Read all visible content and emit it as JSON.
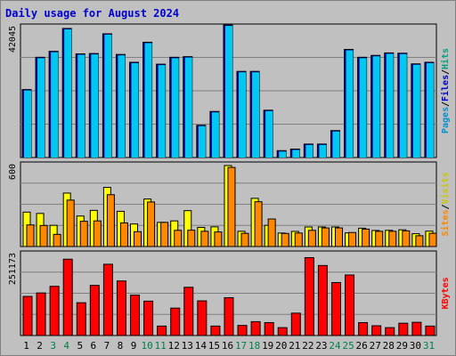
{
  "title": "Daily usage for August 2024",
  "colors": {
    "pages": "#0090d0",
    "hits": "#00c8f0",
    "visits": "#ffff00",
    "sites": "#ff8800",
    "kbytes": "#ff0000",
    "weekend_label": "#00804a",
    "weekday_label": "#000000",
    "frame": "#c0c0c0",
    "grid": "#808080"
  },
  "chart_data": [
    {
      "type": "bar",
      "panel": "hits-files-pages",
      "y_tick_label": "42045",
      "ylim": [
        0,
        42045
      ],
      "grid": true,
      "legend": [
        {
          "name": "Pages",
          "color": "#0090d0"
        },
        {
          "name": "Files",
          "color": "#0000cc"
        },
        {
          "name": "Hits",
          "color": "#00a080"
        }
      ],
      "categories": [
        "1",
        "2",
        "3",
        "4",
        "5",
        "6",
        "7",
        "8",
        "9",
        "10",
        "11",
        "12",
        "13",
        "14",
        "15",
        "16",
        "17",
        "18",
        "19",
        "20",
        "21",
        "22",
        "23",
        "24",
        "25",
        "26",
        "27",
        "28",
        "29",
        "30",
        "31"
      ],
      "series": [
        {
          "name": "Pages",
          "values": [
            21700,
            32000,
            33900,
            41200,
            33100,
            33200,
            39500,
            32900,
            30400,
            36800,
            29800,
            32000,
            32200,
            10300,
            14700,
            42300,
            27500,
            27500,
            15100,
            2200,
            2700,
            4300,
            4300,
            8600,
            34500,
            32000,
            32600,
            33400,
            33300,
            29900,
            30400
          ]
        },
        {
          "name": "Hits",
          "values": [
            21700,
            32000,
            33900,
            41200,
            33100,
            33200,
            39500,
            32900,
            30400,
            36800,
            29800,
            32000,
            32200,
            10300,
            14700,
            42300,
            27500,
            27500,
            15100,
            2200,
            2700,
            4300,
            4300,
            8600,
            34500,
            32000,
            32600,
            33400,
            33300,
            29900,
            30400
          ]
        }
      ]
    },
    {
      "type": "bar",
      "panel": "visits-sites",
      "y_tick_label": "600",
      "ylim": [
        0,
        600
      ],
      "grid": true,
      "legend": [
        {
          "name": "Sites",
          "color": "#ff8800"
        },
        {
          "name": "Visits",
          "color": "#c8c800"
        }
      ],
      "categories": [
        "1",
        "2",
        "3",
        "4",
        "5",
        "6",
        "7",
        "8",
        "9",
        "10",
        "11",
        "12",
        "13",
        "14",
        "15",
        "16",
        "17",
        "18",
        "19",
        "20",
        "21",
        "22",
        "23",
        "24",
        "25",
        "26",
        "27",
        "28",
        "29",
        "30",
        "31"
      ],
      "series": [
        {
          "name": "Visits",
          "values": [
            255,
            245,
            157,
            396,
            226,
            268,
            438,
            261,
            167,
            352,
            179,
            190,
            266,
            142,
            146,
            600,
            113,
            357,
            157,
            100,
            112,
            145,
            145,
            145,
            101,
            136,
            119,
            120,
            124,
            95,
            114
          ]
        },
        {
          "name": "Sites",
          "values": [
            160,
            156,
            90,
            344,
            187,
            190,
            384,
            175,
            110,
            330,
            179,
            120,
            121,
            113,
            108,
            586,
            98,
            332,
            204,
            97,
            100,
            120,
            138,
            138,
            104,
            129,
            113,
            113,
            116,
            80,
            98
          ]
        }
      ]
    },
    {
      "type": "bar",
      "panel": "kbytes",
      "y_tick_label": "251173",
      "ylim": [
        0,
        251173
      ],
      "grid": true,
      "legend": [
        {
          "name": "KBytes",
          "color": "#ff0000"
        }
      ],
      "categories": [
        "1",
        "2",
        "3",
        "4",
        "5",
        "6",
        "7",
        "8",
        "9",
        "10",
        "11",
        "12",
        "13",
        "14",
        "15",
        "16",
        "17",
        "18",
        "19",
        "20",
        "21",
        "22",
        "23",
        "24",
        "25",
        "26",
        "27",
        "28",
        "29",
        "30",
        "31"
      ],
      "series": [
        {
          "name": "KBytes",
          "values": [
            124000,
            135000,
            156000,
            242000,
            104000,
            159000,
            226000,
            173000,
            128000,
            109000,
            30000,
            87000,
            153000,
            110000,
            30000,
            120000,
            32000,
            44000,
            41000,
            25000,
            71000,
            247000,
            222000,
            168000,
            192000,
            41000,
            31000,
            25000,
            39000,
            42000,
            30000
          ]
        }
      ]
    }
  ]
}
